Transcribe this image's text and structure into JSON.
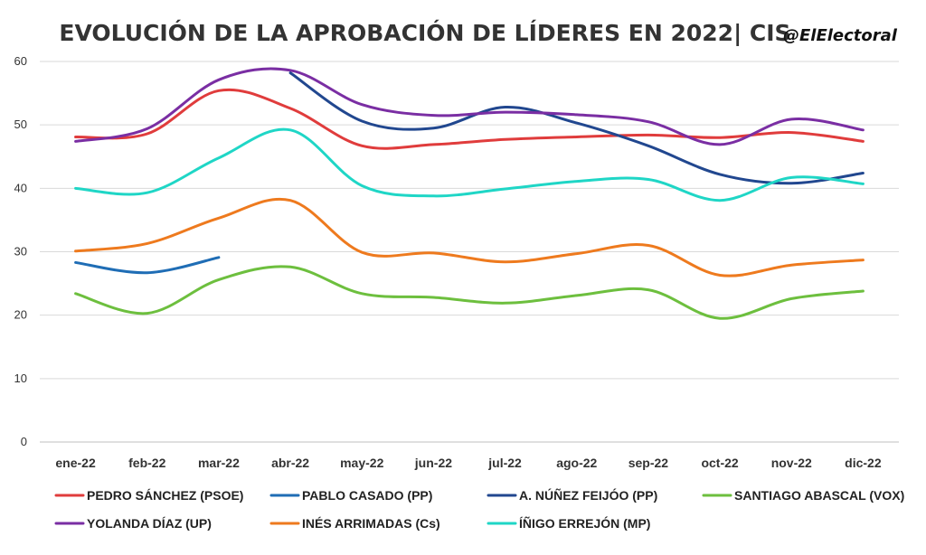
{
  "chart_data": {
    "type": "line",
    "title": "EVOLUCIÓN DE LA APROBACIÓN DE LÍDERES EN 2022|  CIS",
    "handle": "@ElElectoral",
    "xlabel": "",
    "ylabel": "",
    "categories": [
      "ene-22",
      "feb-22",
      "mar-22",
      "abr-22",
      "may-22",
      "jun-22",
      "jul-22",
      "ago-22",
      "sep-22",
      "oct-22",
      "nov-22",
      "dic-22"
    ],
    "ylim": [
      0,
      60
    ],
    "yticks": [
      "0",
      "10",
      "20",
      "30",
      "40",
      "50",
      "60"
    ],
    "grid": true,
    "legend_position": "bottom",
    "series": [
      {
        "name": "PEDRO SÁNCHEZ (PSOE)",
        "color": "#e03c3c",
        "values": [
          48.1,
          48.6,
          55.4,
          52.6,
          46.7,
          46.9,
          47.7,
          48.1,
          48.4,
          48.0,
          48.8,
          47.4
        ]
      },
      {
        "name": "PABLO CASADO (PP)",
        "color": "#1f6db5",
        "values": [
          28.3,
          26.7,
          29.1,
          null,
          null,
          null,
          null,
          null,
          null,
          null,
          null,
          null
        ]
      },
      {
        "name": "A. NÚÑEZ FEIJÓO (PP)",
        "color": "#21478f",
        "values": [
          null,
          null,
          null,
          58.2,
          50.6,
          49.5,
          52.8,
          50.3,
          46.7,
          42.2,
          40.8,
          42.4
        ]
      },
      {
        "name": "SANTIAGO ABASCAL (VOX)",
        "color": "#6dbf3e",
        "values": [
          23.4,
          20.3,
          25.6,
          27.6,
          23.4,
          22.8,
          21.9,
          23.1,
          24.0,
          19.5,
          22.6,
          23.8
        ]
      },
      {
        "name": "YOLANDA DÍAZ (UP)",
        "color": "#7a2ea3",
        "values": [
          47.4,
          49.4,
          57.1,
          58.6,
          53.2,
          51.5,
          52.0,
          51.6,
          50.5,
          46.9,
          50.9,
          49.2
        ]
      },
      {
        "name": "INÉS ARRIMADAS (Cs)",
        "color": "#ee7a1e",
        "values": [
          30.1,
          31.3,
          35.3,
          38.1,
          29.9,
          29.8,
          28.4,
          29.7,
          31.0,
          26.3,
          27.9,
          28.7
        ]
      },
      {
        "name": "ÍÑIGO ERREJÓN (MP)",
        "color": "#1fd6c6",
        "values": [
          40.0,
          39.3,
          44.8,
          49.2,
          40.4,
          38.8,
          39.9,
          41.1,
          41.4,
          38.1,
          41.7,
          40.7
        ]
      }
    ]
  }
}
